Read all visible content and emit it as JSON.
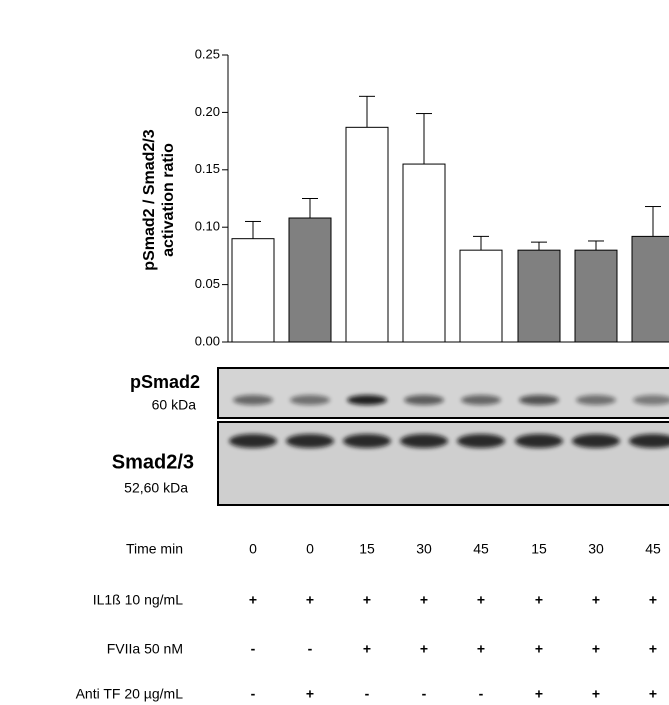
{
  "chart_data": {
    "type": "bar",
    "ylabel": [
      "pSmad2 / Smad2/3",
      "activation ratio"
    ],
    "values": [
      0.09,
      0.108,
      0.187,
      0.155,
      0.08,
      0.08,
      0.08,
      0.092
    ],
    "errors": [
      0.015,
      0.017,
      0.027,
      0.044,
      0.012,
      0.007,
      0.008,
      0.026
    ],
    "colors": [
      "#ffffff",
      "#808080",
      "#ffffff",
      "#ffffff",
      "#ffffff",
      "#808080",
      "#808080",
      "#808080"
    ],
    "ylim": [
      0,
      0.25
    ],
    "yticks": [
      {
        "value": 0,
        "label": "0.00"
      },
      0.05,
      {
        "value": 0.1,
        "label": "0.10"
      },
      0.15,
      {
        "value": 0.2,
        "label": "0.20"
      },
      0.25
    ]
  },
  "blot": [
    {
      "name": "pSmad2",
      "size": "60 kDa"
    },
    {
      "name": "Smad2/3",
      "size": "52,60 kDa"
    }
  ],
  "conditions": [
    {
      "label": "Time min",
      "cells": [
        "0",
        "0",
        "15",
        "30",
        "45",
        "15",
        "30",
        "45"
      ]
    },
    {
      "label": "IL1ß 10 ng/mL",
      "cells": [
        "+",
        "+",
        "+",
        "+",
        "+",
        "+",
        "+",
        "+"
      ]
    },
    {
      "label": "FVIIa 50 nM",
      "cells": [
        "-",
        "-",
        "+",
        "+",
        "+",
        "+",
        "+",
        "+"
      ]
    },
    {
      "label": "Anti TF 20 µg/mL",
      "cells": [
        "-",
        "+",
        "-",
        "-",
        "-",
        "+",
        "+",
        "+"
      ]
    }
  ]
}
